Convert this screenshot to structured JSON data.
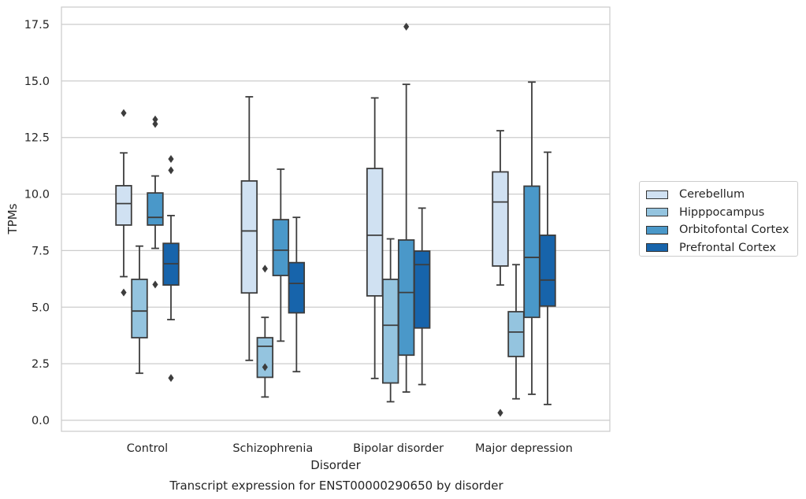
{
  "chart_data": {
    "type": "box",
    "xlabel": "Disorder",
    "ylabel": "TPMs",
    "caption": "Transcript expression for ENST00000290650 by disorder",
    "ylim": [
      -0.45,
      18.3
    ],
    "yticks": [
      0.0,
      2.5,
      5.0,
      7.5,
      10.0,
      12.5,
      15.0,
      17.5
    ],
    "ytick_labels": [
      "0.0",
      "2.5",
      "5.0",
      "7.5",
      "10.0",
      "12.5",
      "15.0",
      "17.5"
    ],
    "grid": "horizontal",
    "legend_position": "right",
    "categories": [
      "Control",
      "Schizophrenia",
      "Bipolar disorder",
      "Major depression"
    ],
    "series": [
      {
        "name": "Cerebellum",
        "color": "#d0e1f2",
        "boxes": [
          {
            "whislo": 6.35,
            "q1": 8.63,
            "med": 9.58,
            "q3": 10.37,
            "whishi": 11.82,
            "fliers": [
              13.58,
              5.65
            ]
          },
          {
            "whislo": 2.65,
            "q1": 5.63,
            "med": 8.37,
            "q3": 10.58,
            "whishi": 14.3,
            "fliers": []
          },
          {
            "whislo": 1.85,
            "q1": 5.5,
            "med": 8.18,
            "q3": 11.13,
            "whishi": 14.25,
            "fliers": []
          },
          {
            "whislo": 5.98,
            "q1": 6.82,
            "med": 9.65,
            "q3": 10.98,
            "whishi": 12.8,
            "fliers": [
              0.33
            ]
          }
        ]
      },
      {
        "name": "Hipppocampus",
        "color": "#94c4df",
        "boxes": [
          {
            "whislo": 2.08,
            "q1": 3.65,
            "med": 4.83,
            "q3": 6.23,
            "whishi": 7.7,
            "fliers": []
          },
          {
            "whislo": 1.03,
            "q1": 1.9,
            "med": 3.27,
            "q3": 3.65,
            "whishi": 4.55,
            "fliers": [
              6.7,
              2.35
            ]
          },
          {
            "whislo": 0.82,
            "q1": 1.65,
            "med": 4.2,
            "q3": 6.23,
            "whishi": 8.02,
            "fliers": []
          },
          {
            "whislo": 0.95,
            "q1": 2.82,
            "med": 3.9,
            "q3": 4.8,
            "whishi": 6.88,
            "fliers": []
          }
        ]
      },
      {
        "name": "Orbitofontal Cortex",
        "color": "#4a98c9",
        "boxes": [
          {
            "whislo": 7.6,
            "q1": 8.63,
            "med": 8.97,
            "q3": 10.05,
            "whishi": 10.8,
            "fliers": [
              13.3,
              13.1,
              6.0
            ]
          },
          {
            "whislo": 3.5,
            "q1": 6.4,
            "med": 7.52,
            "q3": 8.87,
            "whishi": 11.1,
            "fliers": []
          },
          {
            "whislo": 1.25,
            "q1": 2.88,
            "med": 5.65,
            "q3": 7.97,
            "whishi": 14.85,
            "fliers": [
              17.4
            ]
          },
          {
            "whislo": 1.15,
            "q1": 4.55,
            "med": 7.2,
            "q3": 10.35,
            "whishi": 14.95,
            "fliers": []
          }
        ]
      },
      {
        "name": "Prefrontal Cortex",
        "color": "#1764ab",
        "boxes": [
          {
            "whislo": 4.45,
            "q1": 5.98,
            "med": 6.92,
            "q3": 7.82,
            "whishi": 9.05,
            "fliers": [
              11.55,
              11.05,
              1.87
            ]
          },
          {
            "whislo": 2.15,
            "q1": 4.75,
            "med": 6.05,
            "q3": 6.97,
            "whishi": 8.97,
            "fliers": []
          },
          {
            "whislo": 1.58,
            "q1": 4.08,
            "med": 6.88,
            "q3": 7.48,
            "whishi": 9.38,
            "fliers": []
          },
          {
            "whislo": 0.7,
            "q1": 5.05,
            "med": 6.2,
            "q3": 8.18,
            "whishi": 11.85,
            "fliers": []
          }
        ]
      }
    ]
  }
}
